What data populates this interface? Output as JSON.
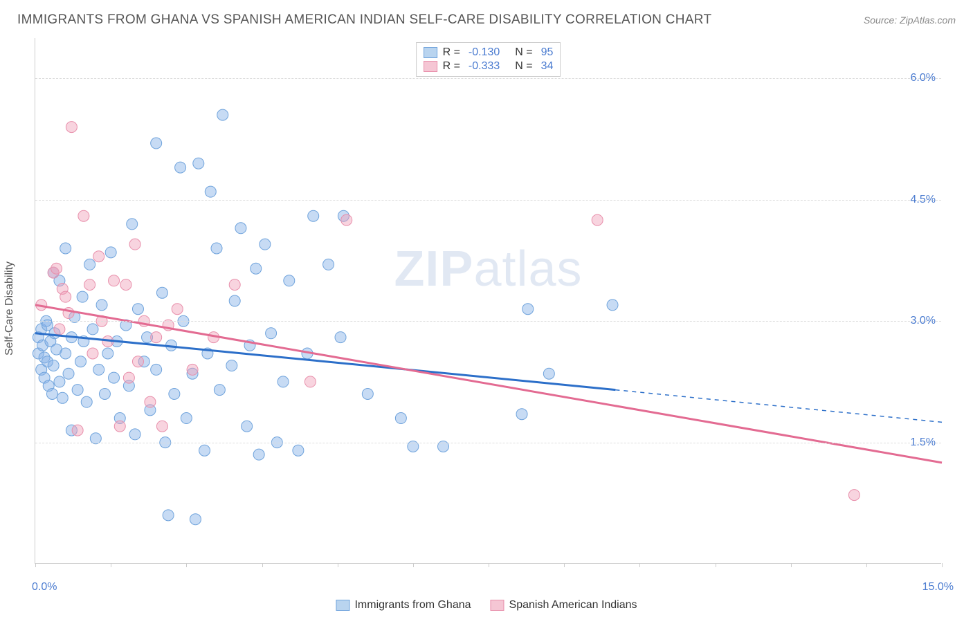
{
  "title": "IMMIGRANTS FROM GHANA VS SPANISH AMERICAN INDIAN SELF-CARE DISABILITY CORRELATION CHART",
  "source": "Source: ZipAtlas.com",
  "y_axis_title": "Self-Care Disability",
  "watermark_bold": "ZIP",
  "watermark_light": "atlas",
  "chart": {
    "type": "scatter-with-regression",
    "background_color": "#ffffff",
    "grid_color": "#dddddd",
    "axis_color": "#cccccc",
    "tick_label_color": "#4a7bd0",
    "xlim": [
      0.0,
      15.0
    ],
    "ylim": [
      0.0,
      6.5
    ],
    "y_ticks": [
      1.5,
      3.0,
      4.5,
      6.0
    ],
    "y_tick_labels": [
      "1.5%",
      "3.0%",
      "4.5%",
      "6.0%"
    ],
    "x_ticks": [
      0.0,
      1.25,
      2.5,
      3.75,
      5.0,
      6.25,
      7.5,
      8.75,
      10.0,
      11.25,
      12.5,
      13.75,
      15.0
    ],
    "x_min_label": "0.0%",
    "x_max_label": "15.0%",
    "marker_radius": 8,
    "marker_stroke_width": 1,
    "line_width": 3,
    "series": [
      {
        "name": "Immigrants from Ghana",
        "fill_color": "rgba(130,175,230,0.45)",
        "stroke_color": "#6fa3dc",
        "line_color": "#2c6fc9",
        "swatch_fill": "#b9d4ef",
        "swatch_border": "#6fa3dc",
        "R": "-0.130",
        "N": "95",
        "regression": {
          "x1": 0.0,
          "y1": 2.85,
          "x2": 9.6,
          "y2": 2.15,
          "dash_x2": 15.0,
          "dash_y2": 1.75
        },
        "points": [
          [
            0.05,
            2.6
          ],
          [
            0.05,
            2.8
          ],
          [
            0.1,
            2.4
          ],
          [
            0.1,
            2.9
          ],
          [
            0.12,
            2.7
          ],
          [
            0.15,
            2.55
          ],
          [
            0.15,
            2.3
          ],
          [
            0.18,
            3.0
          ],
          [
            0.2,
            2.95
          ],
          [
            0.2,
            2.5
          ],
          [
            0.22,
            2.2
          ],
          [
            0.25,
            2.75
          ],
          [
            0.28,
            2.1
          ],
          [
            0.3,
            3.6
          ],
          [
            0.3,
            2.45
          ],
          [
            0.32,
            2.85
          ],
          [
            0.35,
            2.65
          ],
          [
            0.4,
            3.5
          ],
          [
            0.4,
            2.25
          ],
          [
            0.45,
            2.05
          ],
          [
            0.5,
            3.9
          ],
          [
            0.5,
            2.6
          ],
          [
            0.55,
            2.35
          ],
          [
            0.6,
            2.8
          ],
          [
            0.6,
            1.65
          ],
          [
            0.65,
            3.05
          ],
          [
            0.7,
            2.15
          ],
          [
            0.75,
            2.5
          ],
          [
            0.78,
            3.3
          ],
          [
            0.8,
            2.75
          ],
          [
            0.85,
            2.0
          ],
          [
            0.9,
            3.7
          ],
          [
            0.95,
            2.9
          ],
          [
            1.0,
            1.55
          ],
          [
            1.05,
            2.4
          ],
          [
            1.1,
            3.2
          ],
          [
            1.15,
            2.1
          ],
          [
            1.2,
            2.6
          ],
          [
            1.25,
            3.85
          ],
          [
            1.3,
            2.3
          ],
          [
            1.35,
            2.75
          ],
          [
            1.4,
            1.8
          ],
          [
            1.5,
            2.95
          ],
          [
            1.55,
            2.2
          ],
          [
            1.6,
            4.2
          ],
          [
            1.65,
            1.6
          ],
          [
            1.7,
            3.15
          ],
          [
            1.8,
            2.5
          ],
          [
            1.85,
            2.8
          ],
          [
            1.9,
            1.9
          ],
          [
            2.0,
            5.2
          ],
          [
            2.0,
            2.4
          ],
          [
            2.1,
            3.35
          ],
          [
            2.15,
            1.5
          ],
          [
            2.2,
            0.6
          ],
          [
            2.25,
            2.7
          ],
          [
            2.3,
            2.1
          ],
          [
            2.4,
            4.9
          ],
          [
            2.45,
            3.0
          ],
          [
            2.5,
            1.8
          ],
          [
            2.6,
            2.35
          ],
          [
            2.65,
            0.55
          ],
          [
            2.7,
            4.95
          ],
          [
            2.8,
            1.4
          ],
          [
            2.85,
            2.6
          ],
          [
            2.9,
            4.6
          ],
          [
            3.0,
            3.9
          ],
          [
            3.05,
            2.15
          ],
          [
            3.1,
            5.55
          ],
          [
            3.25,
            2.45
          ],
          [
            3.3,
            3.25
          ],
          [
            3.4,
            4.15
          ],
          [
            3.5,
            1.7
          ],
          [
            3.55,
            2.7
          ],
          [
            3.65,
            3.65
          ],
          [
            3.7,
            1.35
          ],
          [
            3.8,
            3.95
          ],
          [
            3.9,
            2.85
          ],
          [
            4.0,
            1.5
          ],
          [
            4.1,
            2.25
          ],
          [
            4.2,
            3.5
          ],
          [
            4.35,
            1.4
          ],
          [
            4.5,
            2.6
          ],
          [
            4.6,
            4.3
          ],
          [
            4.85,
            3.7
          ],
          [
            5.05,
            2.8
          ],
          [
            5.1,
            4.3
          ],
          [
            5.5,
            2.1
          ],
          [
            6.05,
            1.8
          ],
          [
            6.25,
            1.45
          ],
          [
            6.75,
            1.45
          ],
          [
            8.05,
            1.85
          ],
          [
            8.15,
            3.15
          ],
          [
            8.5,
            2.35
          ],
          [
            9.55,
            3.2
          ]
        ]
      },
      {
        "name": "Spanish American Indians",
        "fill_color": "rgba(240,160,185,0.45)",
        "stroke_color": "#e88fab",
        "line_color": "#e36b92",
        "swatch_fill": "#f5c6d4",
        "swatch_border": "#e88fab",
        "R": "-0.333",
        "N": "34",
        "regression": {
          "x1": 0.0,
          "y1": 3.2,
          "x2": 15.0,
          "y2": 1.25,
          "dash_x2": 15.0,
          "dash_y2": 1.25
        },
        "points": [
          [
            0.1,
            3.2
          ],
          [
            0.3,
            3.6
          ],
          [
            0.35,
            3.65
          ],
          [
            0.4,
            2.9
          ],
          [
            0.45,
            3.4
          ],
          [
            0.5,
            3.3
          ],
          [
            0.55,
            3.1
          ],
          [
            0.6,
            5.4
          ],
          [
            0.7,
            1.65
          ],
          [
            0.8,
            4.3
          ],
          [
            0.9,
            3.45
          ],
          [
            0.95,
            2.6
          ],
          [
            1.05,
            3.8
          ],
          [
            1.1,
            3.0
          ],
          [
            1.2,
            2.75
          ],
          [
            1.3,
            3.5
          ],
          [
            1.4,
            1.7
          ],
          [
            1.5,
            3.45
          ],
          [
            1.55,
            2.3
          ],
          [
            1.65,
            3.95
          ],
          [
            1.7,
            2.5
          ],
          [
            1.8,
            3.0
          ],
          [
            1.9,
            2.0
          ],
          [
            2.0,
            2.8
          ],
          [
            2.1,
            1.7
          ],
          [
            2.2,
            2.95
          ],
          [
            2.35,
            3.15
          ],
          [
            2.6,
            2.4
          ],
          [
            2.95,
            2.8
          ],
          [
            3.3,
            3.45
          ],
          [
            4.55,
            2.25
          ],
          [
            5.15,
            4.25
          ],
          [
            9.3,
            4.25
          ],
          [
            13.55,
            0.85
          ]
        ]
      }
    ]
  },
  "legend_bottom": [
    {
      "label": "Immigrants from Ghana",
      "swatch_fill": "#b9d4ef",
      "swatch_border": "#6fa3dc"
    },
    {
      "label": "Spanish American Indians",
      "swatch_fill": "#f5c6d4",
      "swatch_border": "#e88fab"
    }
  ]
}
